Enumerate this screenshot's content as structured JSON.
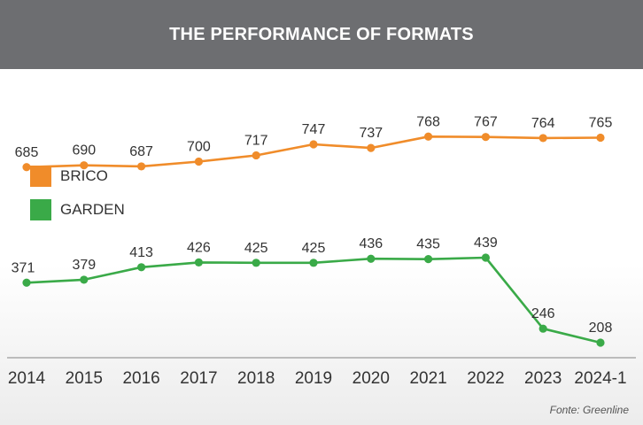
{
  "header": {
    "title": "THE PERFORMANCE OF FORMATS"
  },
  "legend": {
    "brico": "BRICO",
    "garden": "GARDEN"
  },
  "source": "Fonte: Greenline",
  "colors": {
    "brico": "#f08c2a",
    "garden": "#3aaa48",
    "header_bg": "#6d6e71"
  },
  "chart_data": {
    "type": "line",
    "title": "THE PERFORMANCE OF FORMATS",
    "categories": [
      "2014",
      "2015",
      "2016",
      "2017",
      "2018",
      "2019",
      "2020",
      "2021",
      "2022",
      "2023",
      "2024-1"
    ],
    "series": [
      {
        "name": "BRICO",
        "color": "#f08c2a",
        "values": [
          685,
          690,
          687,
          700,
          717,
          747,
          737,
          768,
          767,
          764,
          765
        ]
      },
      {
        "name": "GARDEN",
        "color": "#3aaa48",
        "values": [
          371,
          379,
          413,
          426,
          425,
          425,
          436,
          435,
          439,
          246,
          208
        ]
      }
    ],
    "xlabel": "",
    "ylabel": "",
    "grid": false,
    "legend_position": "left"
  }
}
